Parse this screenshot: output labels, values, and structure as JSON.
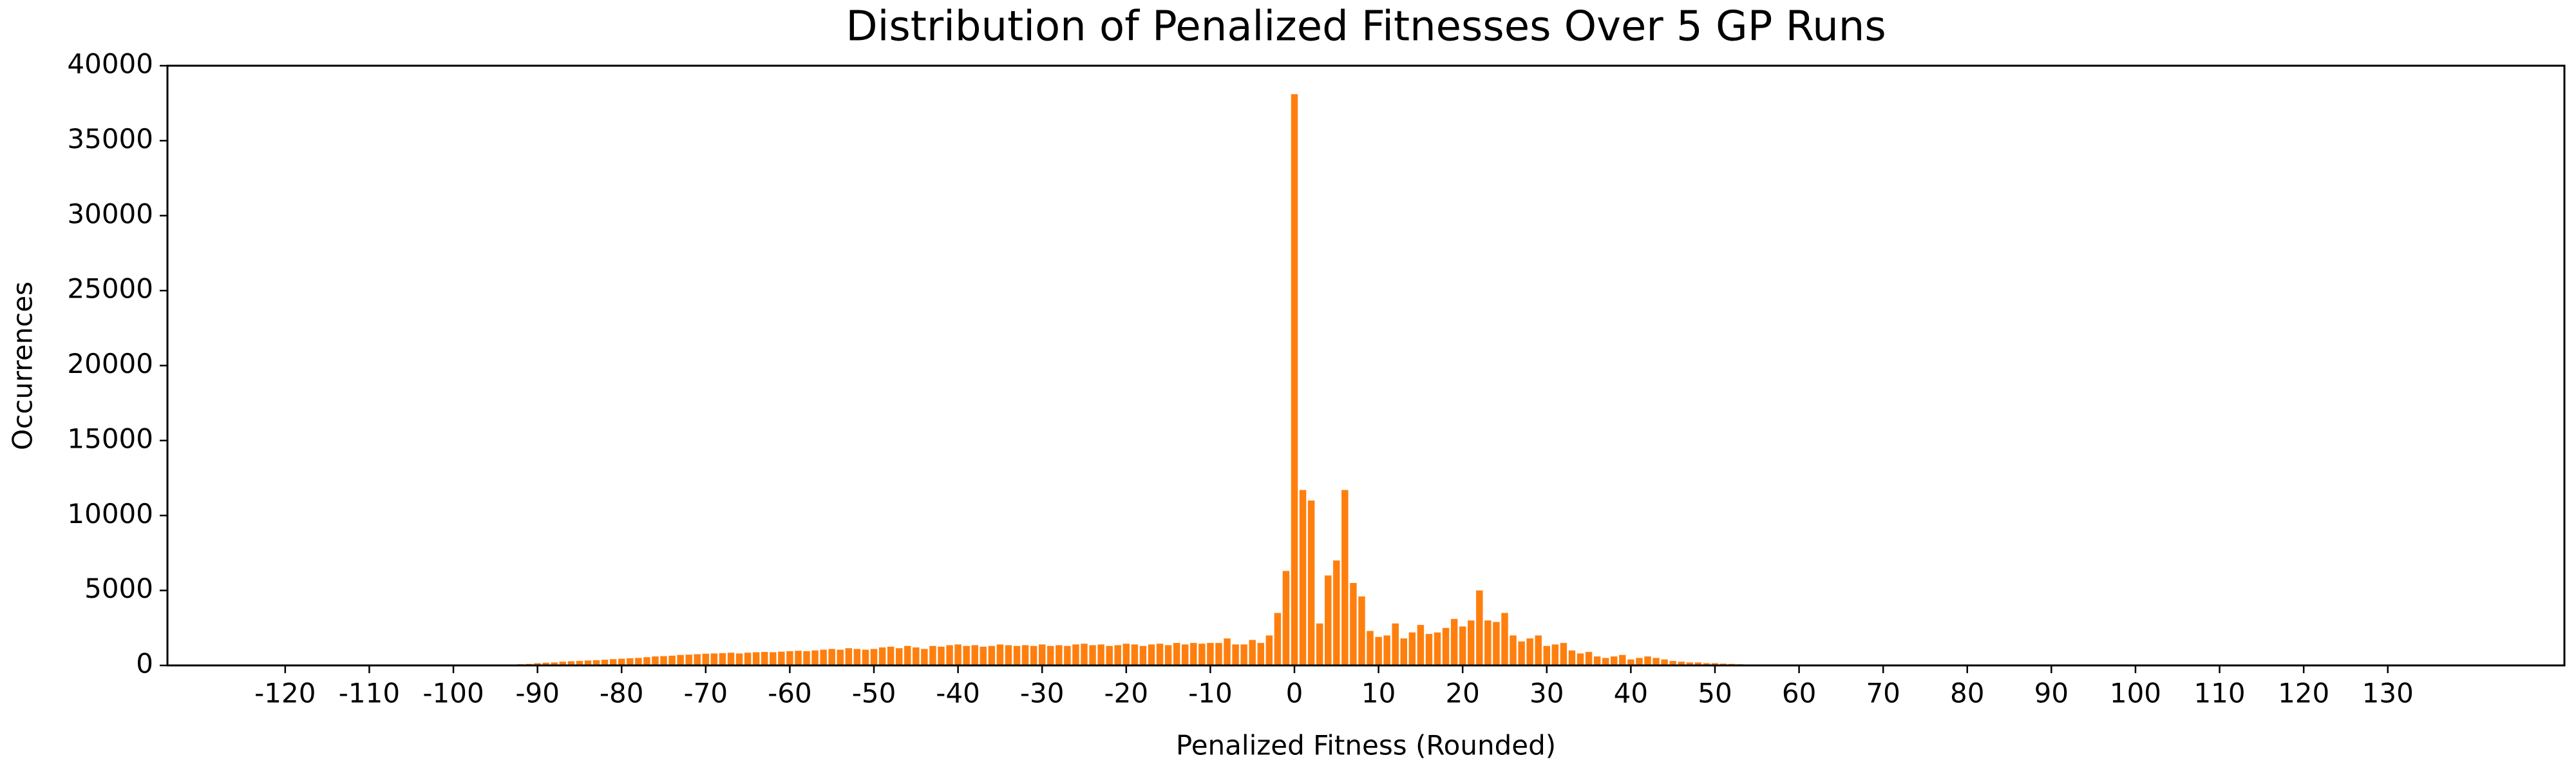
{
  "chart_data": {
    "type": "bar",
    "title": "Distribution of Penalized Fitnesses Over 5 GP Runs",
    "xlabel": "Penalized Fitness (Rounded)",
    "ylabel": "Occurrences",
    "color": "#ff7f0e",
    "x": [
      -93,
      -92,
      -91,
      -90,
      -89,
      -88,
      -87,
      -86,
      -85,
      -84,
      -83,
      -82,
      -81,
      -80,
      -79,
      -78,
      -77,
      -76,
      -75,
      -74,
      -73,
      -72,
      -71,
      -70,
      -69,
      -68,
      -67,
      -66,
      -65,
      -64,
      -63,
      -62,
      -61,
      -60,
      -59,
      -58,
      -57,
      -56,
      -55,
      -54,
      -53,
      -52,
      -51,
      -50,
      -49,
      -48,
      -47,
      -46,
      -45,
      -44,
      -43,
      -42,
      -41,
      -40,
      -39,
      -38,
      -37,
      -36,
      -35,
      -34,
      -33,
      -32,
      -31,
      -30,
      -29,
      -28,
      -27,
      -26,
      -25,
      -24,
      -23,
      -22,
      -21,
      -20,
      -19,
      -18,
      -17,
      -16,
      -15,
      -14,
      -13,
      -12,
      -11,
      -10,
      -9,
      -8,
      -7,
      -6,
      -5,
      -4,
      -3,
      -2,
      -1,
      0,
      1,
      2,
      3,
      4,
      5,
      6,
      7,
      8,
      9,
      10,
      11,
      12,
      13,
      14,
      15,
      16,
      17,
      18,
      19,
      20,
      21,
      22,
      23,
      24,
      25,
      26,
      27,
      28,
      29,
      30,
      31,
      32,
      33,
      34,
      35,
      36,
      37,
      38,
      39,
      40,
      41,
      42,
      43,
      44,
      45,
      46,
      47,
      48,
      49,
      50,
      51,
      52,
      53,
      54,
      55
    ],
    "values": [
      50,
      80,
      100,
      150,
      180,
      200,
      250,
      280,
      300,
      330,
      350,
      380,
      420,
      450,
      480,
      500,
      550,
      600,
      620,
      650,
      700,
      720,
      750,
      780,
      800,
      820,
      850,
      800,
      850,
      880,
      900,
      880,
      920,
      950,
      980,
      950,
      1000,
      1050,
      1100,
      1050,
      1150,
      1100,
      1050,
      1100,
      1200,
      1250,
      1150,
      1300,
      1200,
      1100,
      1300,
      1250,
      1350,
      1400,
      1300,
      1350,
      1250,
      1300,
      1400,
      1350,
      1300,
      1350,
      1300,
      1400,
      1300,
      1350,
      1300,
      1400,
      1450,
      1350,
      1400,
      1300,
      1350,
      1450,
      1400,
      1300,
      1400,
      1450,
      1350,
      1500,
      1400,
      1500,
      1450,
      1500,
      1500,
      1800,
      1400,
      1400,
      1700,
      1500,
      2000,
      3500,
      6300,
      38100,
      11700,
      11000,
      2800,
      6000,
      7000,
      11700,
      5500,
      4600,
      2300,
      1900,
      2000,
      2800,
      1800,
      2200,
      2700,
      2100,
      2200,
      2500,
      3100,
      2600,
      3000,
      5000,
      3000,
      2900,
      3500,
      2000,
      1600,
      1800,
      2000,
      1300,
      1400,
      1500,
      1000,
      800,
      900,
      600,
      500,
      600,
      700,
      400,
      500,
      600,
      500,
      400,
      300,
      250,
      200,
      200,
      150,
      150,
      120,
      100,
      80,
      60,
      40
    ],
    "xlim": [
      -134,
      151
    ],
    "ylim": [
      0,
      40000
    ],
    "xticks": [
      -120,
      -110,
      -100,
      -90,
      -80,
      -70,
      -60,
      -50,
      -40,
      -30,
      -20,
      -10,
      0,
      10,
      20,
      30,
      40,
      50,
      60,
      70,
      80,
      90,
      100,
      110,
      120,
      130
    ],
    "yticks": [
      0,
      5000,
      10000,
      15000,
      20000,
      25000,
      30000,
      35000,
      40000
    ]
  }
}
